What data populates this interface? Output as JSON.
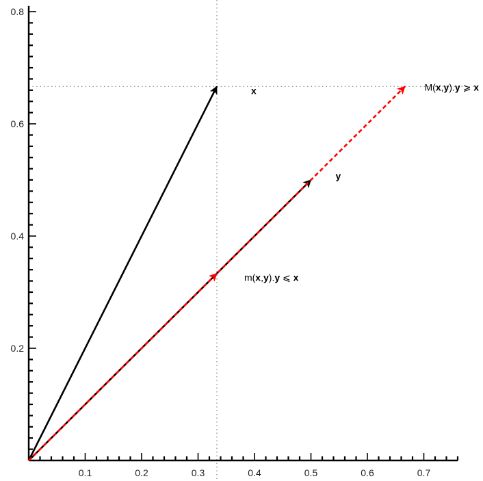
{
  "chart_data": {
    "type": "vector-plot",
    "title": "",
    "xlabel": "",
    "ylabel": "",
    "xlim": [
      0,
      0.76
    ],
    "ylim": [
      0,
      0.81
    ],
    "x_ticks": [
      "0.1",
      "0.2",
      "0.3",
      "0.4",
      "0.5",
      "0.6",
      "0.7"
    ],
    "y_ticks": [
      "0.2",
      "0.4",
      "0.6",
      "0.8"
    ],
    "colors": {
      "axis": "#000000",
      "vector": "#000000",
      "projection": "#ff0000",
      "guide": "#888888"
    },
    "guides": {
      "vertical_x": 0.3333,
      "horizontal_y": 0.6667
    },
    "vectors": [
      {
        "name": "x",
        "x": 0.3333,
        "y": 0.6667,
        "style": "solid",
        "color": "black"
      },
      {
        "name": "y",
        "x": 0.5,
        "y": 0.5,
        "style": "solid",
        "color": "black"
      },
      {
        "name": "m(x,y).y",
        "x": 0.3333,
        "y": 0.3333,
        "style": "dashed",
        "color": "red"
      },
      {
        "name": "M(x,y).y",
        "x": 0.6667,
        "y": 0.6667,
        "style": "dashed",
        "color": "red"
      }
    ],
    "annotations": {
      "x": {
        "text": "x"
      },
      "y": {
        "text": "y"
      },
      "m": {
        "prefix": "m(",
        "a": "x",
        "comma": ",",
        "b": "y",
        "mid": ").",
        "c": "y",
        "rel": " ⩽ ",
        "d": "x"
      },
      "M": {
        "prefix": "M(",
        "a": "x",
        "comma": ",",
        "b": "y",
        "mid": ").",
        "c": "y",
        "rel": " ⩾ ",
        "d": "x"
      }
    }
  }
}
